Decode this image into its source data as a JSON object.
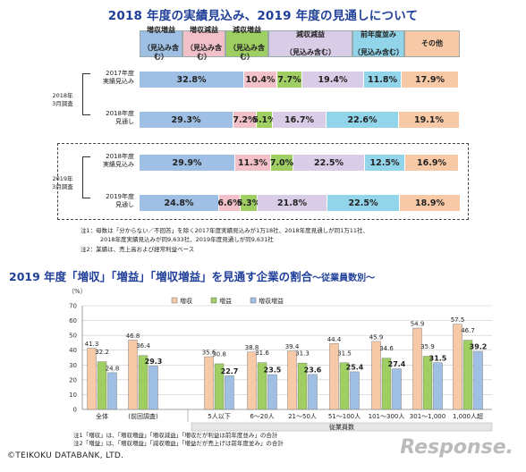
{
  "title1": "2018 年度の実績見込み、2019 年度の見通しについて",
  "headers": [
    {
      "line1": "増収増益",
      "line2": "（見込み含む）",
      "color": "#9fc0e4"
    },
    {
      "line1": "増収減益",
      "line2": "（見込み含む）",
      "color": "#f2c0c8"
    },
    {
      "line1": "減収増益",
      "line2": "（見込み含む）",
      "color": "#9fce63"
    },
    {
      "line1": "減収減益",
      "line2": "（見込み含む）",
      "color": "#d9cce6"
    },
    {
      "line1": "前年度並み",
      "line2": "（見込み含む）",
      "color": "#92d4ea"
    },
    {
      "line1": "その他",
      "line2": "",
      "color": "#f7c9a6"
    }
  ],
  "groups": [
    {
      "label_l1": "2018年",
      "label_l2": "3月調査",
      "rows": [
        {
          "l1": "2017年度",
          "l2": "実績見込み",
          "values": [
            32.8,
            10.4,
            7.7,
            19.4,
            11.8,
            17.9
          ],
          "texts": [
            "32.8%",
            "10.4%",
            "7.7%",
            "19.4%",
            "11.8%",
            "17.9%"
          ]
        },
        {
          "l1": "2018年度",
          "l2": "見通し",
          "values": [
            29.3,
            7.2,
            5.1,
            16.7,
            22.6,
            19.1
          ],
          "texts": [
            "29.3%",
            "7.2%",
            "5.1%",
            "16.7%",
            "22.6%",
            "19.1%"
          ]
        }
      ]
    },
    {
      "label_l1": "2019年",
      "label_l2": "3月調査",
      "rows": [
        {
          "l1": "2018年度",
          "l2": "実績見込み",
          "values": [
            29.9,
            11.3,
            7.0,
            22.5,
            12.5,
            16.9
          ],
          "texts": [
            "29.9%",
            "11.3%",
            "7.0%",
            "22.5%",
            "12.5%",
            "16.9%"
          ]
        },
        {
          "l1": "2019年度",
          "l2": "見通し",
          "values": [
            24.8,
            6.6,
            5.3,
            21.8,
            22.5,
            18.9
          ],
          "texts": [
            "24.8%",
            "6.6%",
            "5.3%",
            "21.8%",
            "22.5%",
            "18.9%"
          ]
        }
      ]
    }
  ],
  "notes1": [
    "注1：母数は「分からない／不回答」を除く2017年度実績見込みが1万18社、2018年度見通しが同1万11社、",
    "2018年度実績見込みが同9,633社、2019年度見通しが同9,631社",
    "注2：業績は、売上高および経常利益ベース"
  ],
  "title2_main": "2019 年度「増収」「増益」「増収増益」を見通す企業の割合",
  "title2_small": "～従業員数別～",
  "notes2": [
    "注1「増収」は、「増収増益」「増収減益」「増収だが利益は前年度並み」の合計",
    "注2「増益」は、「増収増益」「減収増益」「増益だが売上げは前年度並み」の合計"
  ],
  "copyright": "©TEIKOKU DATABANK, LTD.",
  "watermark": "Response.",
  "chart_data": [
    {
      "type": "bar",
      "stacked": true,
      "orientation": "horizontal",
      "title": "2018 年度の実績見込み、2019 年度の見通しについて",
      "categories": [
        "2017年度 実績見込み",
        "2018年度 見通し",
        "2018年度 実績見込み",
        "2019年度 見通し"
      ],
      "groups": [
        "2018年 3月調査",
        "2019年 3月調査"
      ],
      "series": [
        {
          "name": "増収増益（見込み含む）",
          "values": [
            32.8,
            29.3,
            29.9,
            24.8
          ],
          "color": "#9fc0e4"
        },
        {
          "name": "増収減益（見込み含む）",
          "values": [
            10.4,
            7.2,
            11.3,
            6.6
          ],
          "color": "#f2c0c8"
        },
        {
          "name": "減収増益（見込み含む）",
          "values": [
            7.7,
            5.1,
            7.0,
            5.3
          ],
          "color": "#9fce63"
        },
        {
          "name": "減収減益（見込み含む）",
          "values": [
            19.4,
            16.7,
            22.5,
            21.8
          ],
          "color": "#d9cce6"
        },
        {
          "name": "前年度並み（見込み含む）",
          "values": [
            11.8,
            22.6,
            12.5,
            22.5
          ],
          "color": "#92d4ea"
        },
        {
          "name": "その他",
          "values": [
            17.9,
            19.1,
            16.9,
            18.9
          ],
          "color": "#f7c9a6"
        }
      ]
    },
    {
      "type": "bar",
      "title": "2019 年度「増収」「増益」「増収増益」を見通す企業の割合～従業員数別～",
      "ylabel": "（%）",
      "ylim": [
        0,
        70
      ],
      "yticks": [
        0,
        10,
        20,
        30,
        40,
        50,
        60,
        70
      ],
      "grid": true,
      "legend": "top",
      "xgroup_label": "従業員数",
      "categories": [
        "全体",
        "(前回調査)",
        "5人以下",
        "6～20人",
        "21～50人",
        "51～100人",
        "101～300人",
        "301～1,000",
        "1,000人超"
      ],
      "series": [
        {
          "name": "増収",
          "values": [
            41.3,
            46.8,
            35.6,
            38.8,
            39.4,
            44.4,
            45.9,
            54.9,
            57.5
          ],
          "color": "#f7c9a6"
        },
        {
          "name": "増益",
          "values": [
            32.2,
            36.4,
            30.8,
            31.6,
            31.3,
            31.5,
            34.6,
            35.9,
            46.7
          ],
          "color": "#9fce63"
        },
        {
          "name": "増収増益",
          "values": [
            24.8,
            29.3,
            22.7,
            23.5,
            23.6,
            25.4,
            27.4,
            31.5,
            39.2
          ],
          "color": "#9fc0e4"
        }
      ]
    }
  ]
}
